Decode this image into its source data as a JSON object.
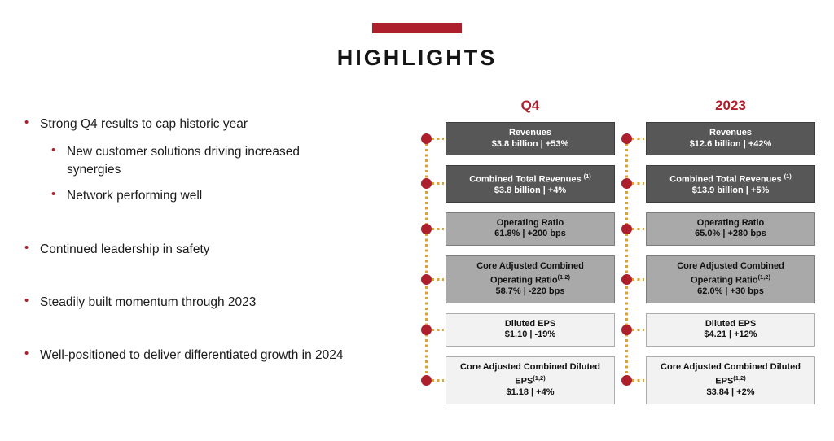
{
  "slide": {
    "title": "HIGHLIGHTS"
  },
  "colors": {
    "accent_crimson": "#AD1F2D",
    "connector_gold": "#DFA32B",
    "box_dark": "#575757",
    "box_medium": "#A9A9A9",
    "box_light": "#F2F2F2"
  },
  "bullets": [
    {
      "level": 1,
      "text": "Strong Q4 results to cap historic year"
    },
    {
      "level": 2,
      "text": "New customer solutions driving increased synergies"
    },
    {
      "level": 2,
      "text": "Network performing well"
    },
    {
      "level": 1,
      "text": "Continued leadership in safety"
    },
    {
      "level": 1,
      "text": "Steadily built momentum through 2023"
    },
    {
      "level": 1,
      "text": "Well-positioned to deliver differentiated growth in 2024"
    }
  ],
  "columns": [
    {
      "header": "Q4",
      "boxes": [
        {
          "title": "Revenues",
          "value": "$3.8 billion | +53%",
          "style": "dark"
        },
        {
          "title": "Combined Total Revenues",
          "sup": "(1)",
          "value": "$3.8 billion | +4%",
          "style": "dark"
        },
        {
          "title": "Operating Ratio",
          "value": "61.8% | +200 bps",
          "style": "medium"
        },
        {
          "title": "Core Adjusted Combined Operating Ratio",
          "sup": "(1,2)",
          "value": "58.7% | -220 bps",
          "style": "medium"
        },
        {
          "title": "Diluted EPS",
          "value": "$1.10 | -19%",
          "style": "light"
        },
        {
          "title": "Core Adjusted Combined Diluted EPS",
          "sup": "(1,2)",
          "value": "$1.18 | +4%",
          "style": "light"
        }
      ]
    },
    {
      "header": "2023",
      "boxes": [
        {
          "title": "Revenues",
          "value": "$12.6 billion | +42%",
          "style": "dark"
        },
        {
          "title": "Combined Total Revenues",
          "sup": "(1)",
          "value": "$13.9 billion | +5%",
          "style": "dark"
        },
        {
          "title": "Operating Ratio",
          "value": "65.0% | +280 bps",
          "style": "medium"
        },
        {
          "title": "Core Adjusted Combined Operating Ratio",
          "sup": "(1,2)",
          "value": "62.0% | +30 bps",
          "style": "medium"
        },
        {
          "title": "Diluted EPS",
          "value": "$4.21 | +12%",
          "style": "light"
        },
        {
          "title": "Core Adjusted Combined Diluted EPS",
          "sup": "(1,2)",
          "value": "$3.84 | +2%",
          "style": "light"
        }
      ]
    }
  ]
}
